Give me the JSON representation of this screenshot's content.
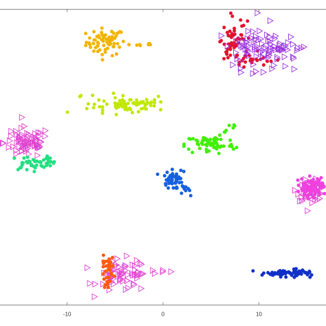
{
  "chart_data": {
    "type": "scatter",
    "title": "",
    "xlabel": "",
    "ylabel": "",
    "xlim": [
      -17,
      17
    ],
    "ylim": [
      -15.8,
      16.8
    ],
    "x_tick_values": [
      -10,
      0,
      10
    ],
    "x_tick_labels": [
      "-10",
      "0",
      "10"
    ],
    "grid": false,
    "legend": "none",
    "series": [
      {
        "marker": "dot",
        "color": "#f2b400",
        "clusters": [
          {
            "cx": -6.0,
            "cy": 13.2,
            "sx": 1.0,
            "sy": 0.75,
            "n": 75,
            "tail": {
              "x": -0.5,
              "y": 12.8
            }
          }
        ]
      },
      {
        "marker": "dot",
        "color": "#e3102c",
        "clusters": [
          {
            "cx": 7.4,
            "cy": 13.2,
            "sx": 0.6,
            "sy": 1.2,
            "n": 55
          },
          {
            "cx": 9.6,
            "cy": 11.2,
            "sx": 1.1,
            "sy": 0.35,
            "n": 20
          }
        ]
      },
      {
        "marker": "triangle",
        "color": "#9b30e0",
        "clusters": [
          {
            "cx": 10.2,
            "cy": 12.4,
            "sx": 1.7,
            "sy": 1.05,
            "n": 95,
            "tail": {
              "x": 14.6,
              "y": 12.4
            }
          }
        ]
      },
      {
        "marker": "dot",
        "color": "#c0e800",
        "clusters": [
          {
            "cx": -4.2,
            "cy": 6.3,
            "sx": 1.7,
            "sy": 0.55,
            "n": 80,
            "tail": {
              "x": -0.8,
              "y": 6.5
            }
          }
        ]
      },
      {
        "marker": "triangle",
        "color": "#e040d0",
        "clusters": [
          {
            "cx": -14.2,
            "cy": 2.1,
            "sx": 1.2,
            "sy": 0.85,
            "n": 75
          },
          {
            "cx": -4.2,
            "cy": -12.6,
            "sx": 1.3,
            "sy": 0.9,
            "n": 70,
            "tail": {
              "x": 0.6,
              "y": -11.9
            }
          },
          {
            "cx": 15.5,
            "cy": -3.2,
            "sx": 0.75,
            "sy": 0.55,
            "n": 55
          }
        ]
      },
      {
        "marker": "dot",
        "color": "#20e080",
        "clusters": [
          {
            "cx": -14.0,
            "cy": -0.2,
            "sx": 0.95,
            "sy": 0.4,
            "n": 35
          },
          {
            "cx": -12.0,
            "cy": -0.1,
            "sx": 0.45,
            "sy": 0.3,
            "n": 14
          }
        ]
      },
      {
        "marker": "dot",
        "color": "#40f000",
        "clusters": [
          {
            "cx": 4.9,
            "cy": 1.9,
            "sx": 1.3,
            "sy": 0.55,
            "n": 75,
            "tail": {
              "x": 7.5,
              "y": 4.1
            }
          }
        ]
      },
      {
        "marker": "dot",
        "color": "#1560e0",
        "clusters": [
          {
            "cx": 1.1,
            "cy": -2.0,
            "sx": 0.6,
            "sy": 0.5,
            "n": 55,
            "tail": {
              "x": 3.2,
              "y": -3.5
            }
          }
        ]
      },
      {
        "marker": "dot",
        "color": "#f040e0",
        "clusters": [
          {
            "cx": 15.5,
            "cy": -3.0,
            "sx": 0.75,
            "sy": 0.6,
            "n": 70
          }
        ]
      },
      {
        "marker": "dot",
        "color": "#ff5a10",
        "clusters": [
          {
            "cx": -5.7,
            "cy": -12.2,
            "sx": 0.35,
            "sy": 0.85,
            "n": 35
          }
        ]
      },
      {
        "marker": "dot",
        "color": "#1030c8",
        "clusters": [
          {
            "cx": 12.5,
            "cy": -12.3,
            "sx": 1.4,
            "sy": 0.2,
            "n": 75,
            "tail": {
              "x": 15.3,
              "y": -12.0
            }
          }
        ]
      }
    ]
  }
}
